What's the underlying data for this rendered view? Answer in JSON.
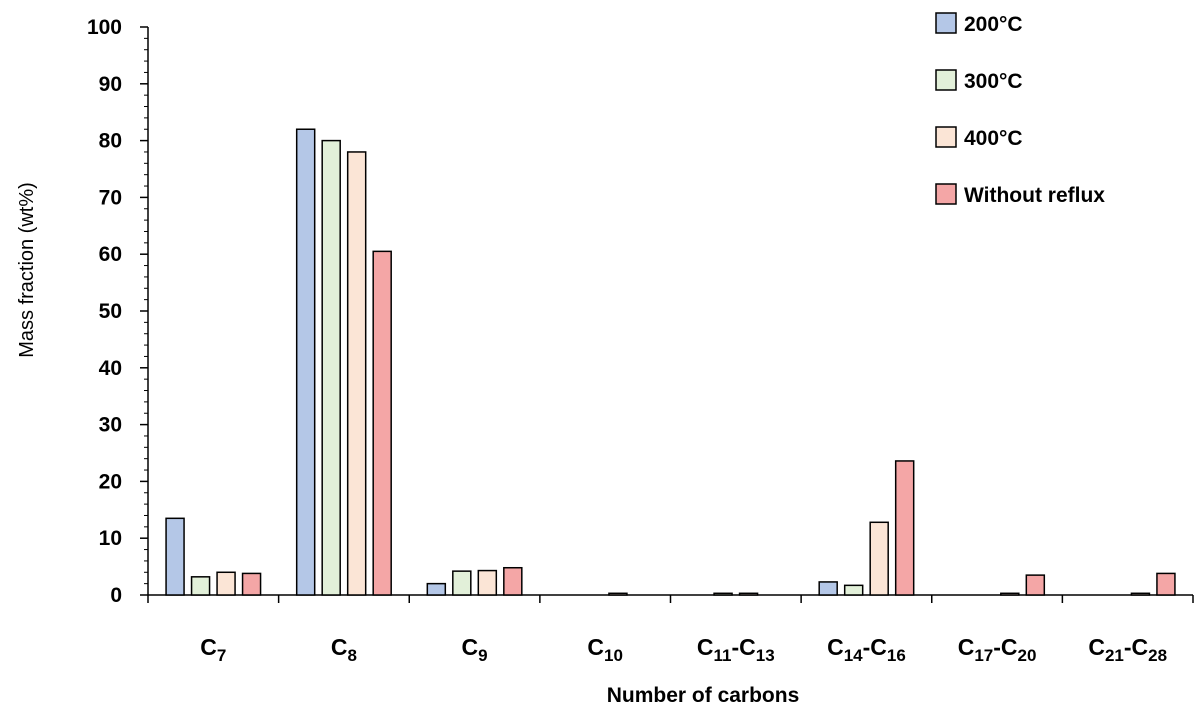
{
  "chart_data": {
    "type": "bar",
    "xlabel": "Number of carbons",
    "ylabel": "Mass fraction (wt%)",
    "ylim": [
      0,
      100
    ],
    "yticks": [
      0,
      10,
      20,
      30,
      40,
      50,
      60,
      70,
      80,
      90,
      100
    ],
    "categories": [
      {
        "main": "C",
        "sub": "7"
      },
      {
        "main": "C",
        "sub": "8"
      },
      {
        "main": "C",
        "sub": "9"
      },
      {
        "main": "C",
        "sub": "10"
      },
      {
        "main": "C",
        "sub": "11",
        "main2": "-C",
        "sub2": "13"
      },
      {
        "main": "C",
        "sub": "14",
        "main2": "-C",
        "sub2": "16"
      },
      {
        "main": "C",
        "sub": "17",
        "main2": "-C",
        "sub2": "20"
      },
      {
        "main": "C",
        "sub": "21",
        "main2": "-C",
        "sub2": "28"
      }
    ],
    "series": [
      {
        "name": "200°C",
        "color": "#b4c7e7",
        "values": [
          13.5,
          82,
          2.0,
          0,
          0,
          2.3,
          0,
          0
        ]
      },
      {
        "name": "300°C",
        "color": "#e2f0d9",
        "values": [
          3.2,
          80,
          4.2,
          0,
          0.3,
          1.7,
          0,
          0
        ]
      },
      {
        "name": "400°C",
        "color": "#fbe5d6",
        "values": [
          4.0,
          78,
          4.3,
          0.3,
          0.3,
          12.8,
          0.3,
          0.3
        ]
      },
      {
        "name": "Without reflux",
        "color": "#f4a6a6",
        "values": [
          3.8,
          60.5,
          4.8,
          0,
          0,
          23.6,
          3.5,
          3.8
        ]
      }
    ],
    "legend_position": "top-right",
    "grid": false
  }
}
